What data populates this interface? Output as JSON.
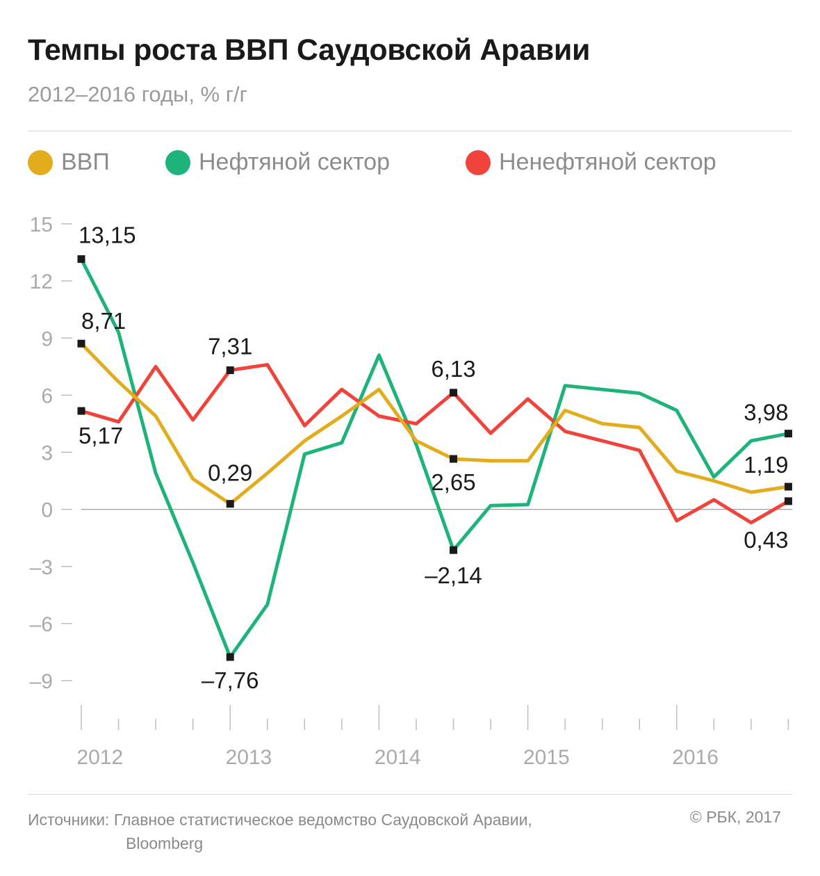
{
  "header": {
    "title": "Темпы роста ВВП Саудовской Аравии",
    "subtitle": "2012–2016 годы, % г/г"
  },
  "legend": [
    {
      "label": "ВВП",
      "color": "#e2ac1d"
    },
    {
      "label": "Нефтяной сектор",
      "color": "#1eb37a"
    },
    {
      "label": "Ненефтяной сектор",
      "color": "#f0433b"
    }
  ],
  "chart_data": {
    "type": "line",
    "x": [
      "2012Q1",
      "2012Q2",
      "2012Q3",
      "2012Q4",
      "2013Q1",
      "2013Q2",
      "2013Q3",
      "2013Q4",
      "2014Q1",
      "2014Q2",
      "2014Q3",
      "2014Q4",
      "2015Q1",
      "2015Q2",
      "2015Q3",
      "2015Q4",
      "2016Q1",
      "2016Q2",
      "2016Q3",
      "2016Q4"
    ],
    "x_tick_labels": [
      "2012",
      "2013",
      "2014",
      "2015",
      "2016"
    ],
    "ylim": [
      -9,
      15
    ],
    "yticks": [
      15,
      12,
      9,
      6,
      3,
      0,
      -3,
      -6,
      -9
    ],
    "ytick_labels": [
      "15",
      "12",
      "9",
      "6",
      "3",
      "0",
      "–3",
      "–6",
      "–9"
    ],
    "series": [
      {
        "name": "ВВП",
        "color": "#e2ac1d",
        "values": [
          8.71,
          6.7,
          4.9,
          1.6,
          0.29,
          1.9,
          3.6,
          4.9,
          6.3,
          3.6,
          2.65,
          2.55,
          2.55,
          5.2,
          4.5,
          4.3,
          2.0,
          1.5,
          0.9,
          1.19
        ]
      },
      {
        "name": "Нефтяной сектор",
        "color": "#1eb37a",
        "values": [
          13.15,
          9.3,
          1.9,
          -2.8,
          -7.76,
          -5.0,
          2.9,
          3.5,
          8.1,
          3.4,
          -2.14,
          0.2,
          0.25,
          6.5,
          6.3,
          6.1,
          5.2,
          1.7,
          3.6,
          3.98
        ]
      },
      {
        "name": "Ненефтяной сектор",
        "color": "#f0433b",
        "values": [
          5.17,
          4.6,
          7.5,
          4.7,
          7.31,
          7.6,
          4.4,
          6.3,
          4.9,
          4.5,
          6.13,
          4.0,
          5.8,
          4.1,
          3.6,
          3.1,
          -0.6,
          0.5,
          -0.7,
          0.43
        ]
      }
    ],
    "annotations": [
      {
        "series": 0,
        "index": 0,
        "text": "8,71"
      },
      {
        "series": 0,
        "index": 4,
        "text": "0,29"
      },
      {
        "series": 0,
        "index": 10,
        "text": "2,65"
      },
      {
        "series": 0,
        "index": 19,
        "text": "1,19"
      },
      {
        "series": 1,
        "index": 0,
        "text": "13,15"
      },
      {
        "series": 1,
        "index": 4,
        "text": "–7,76"
      },
      {
        "series": 1,
        "index": 10,
        "text": "–2,14"
      },
      {
        "series": 1,
        "index": 19,
        "text": "3,98"
      },
      {
        "series": 2,
        "index": 0,
        "text": "5,17"
      },
      {
        "series": 2,
        "index": 4,
        "text": "7,31"
      },
      {
        "series": 2,
        "index": 10,
        "text": "6,13"
      },
      {
        "series": 2,
        "index": 19,
        "text": "0,43"
      }
    ],
    "grid": false,
    "legend_position": "top"
  },
  "footer": {
    "sources_line1": "Источники: Главное статистическое ведомство Саудовской Аравии,",
    "sources_line2": "Bloomberg",
    "copyright": "© РБК, 2017"
  }
}
